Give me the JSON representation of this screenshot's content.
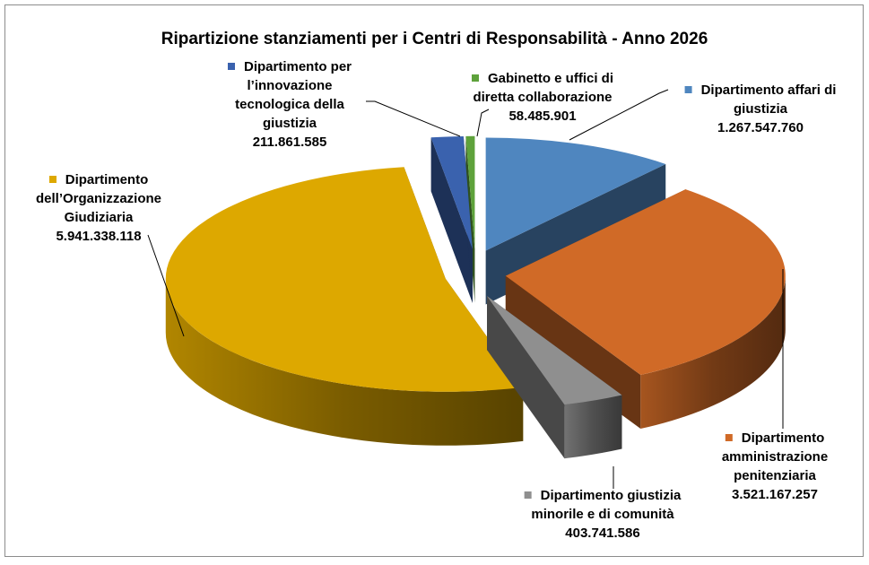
{
  "chart_data": {
    "type": "pie",
    "style": "3d-exploded",
    "title": "Ripartizione stanziamenti per i Centri di Responsabilità - Anno 2026",
    "legend": "none",
    "slices": [
      {
        "name": "Dipartimento affari di giustizia",
        "lines": [
          "Dipartimento affari di",
          "giustizia"
        ],
        "value": 1267547760,
        "value_label": "1.267.547.760",
        "color": "#4F86BF"
      },
      {
        "name": "Dipartimento amministrazione penitenziaria",
        "lines": [
          "Dipartimento",
          "amministrazione",
          "penitenziaria"
        ],
        "value": 3521167257,
        "value_label": "3.521.167.257",
        "color": "#D06A27"
      },
      {
        "name": "Dipartimento giustizia minorile e di comunità",
        "lines": [
          "Dipartimento giustizia",
          "minorile e di comunità"
        ],
        "value": 403741586,
        "value_label": "403.741.586",
        "color": "#8F8F8F"
      },
      {
        "name": "Dipartimento dell’Organizzazione Giudiziaria",
        "lines": [
          "Dipartimento",
          "dell’Organizzazione",
          "Giudiziaria"
        ],
        "value": 5941338118,
        "value_label": "5.941.338.118",
        "color": "#DDA800"
      },
      {
        "name": "Dipartimento per l’innovazione tecnologica della giustizia",
        "lines": [
          "Dipartimento per",
          "l’innovazione",
          "tecnologica della",
          "giustizia"
        ],
        "value": 211861585,
        "value_label": "211.861.585",
        "color": "#3A62AE"
      },
      {
        "name": "Gabinetto e uffici di diretta collaborazione",
        "lines": [
          "Gabinetto e uffici  di",
          "diretta collaborazione"
        ],
        "value": 58485901,
        "value_label": "58.485.901",
        "color": "#5EA23B"
      }
    ]
  }
}
